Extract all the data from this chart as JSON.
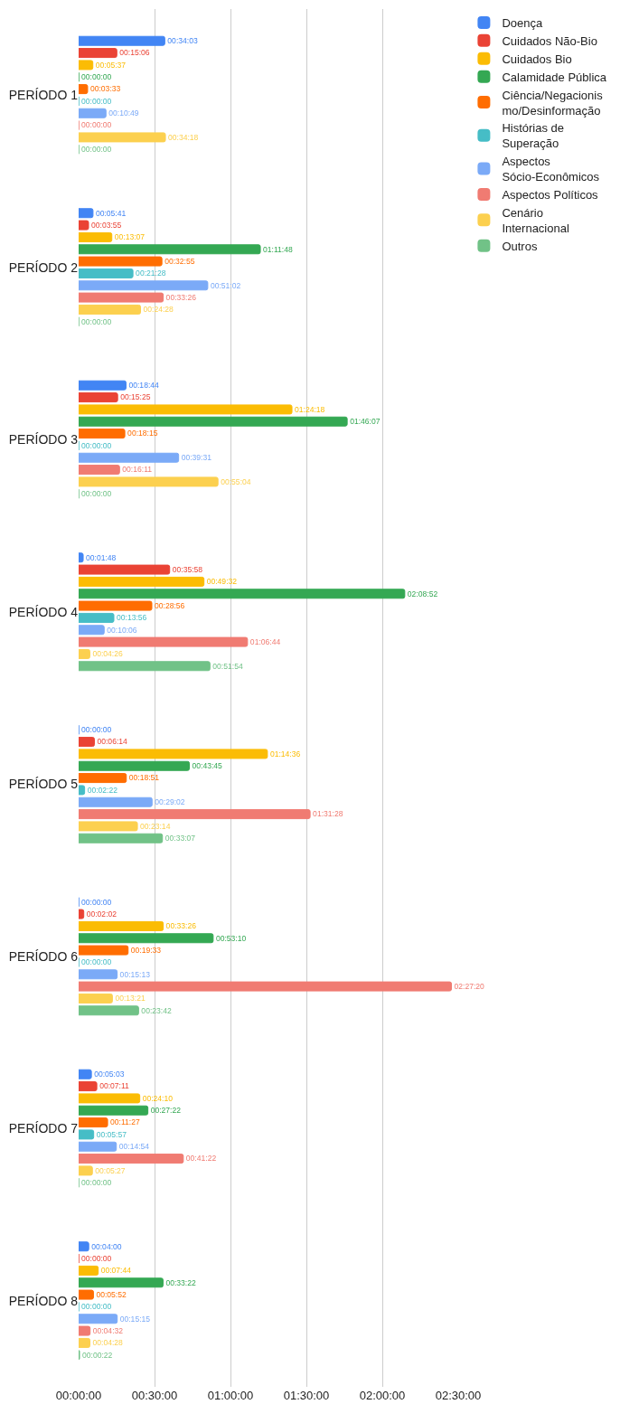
{
  "chart_data": {
    "type": "bar",
    "orientation": "horizontal",
    "categories": [
      "PERÍODO 1",
      "PERÍODO 2",
      "PERÍODO 3",
      "PERÍODO 4",
      "PERÍODO 5",
      "PERÍODO 6",
      "PERÍODO 7",
      "PERÍODO 8"
    ],
    "xlim": [
      0,
      9000
    ],
    "xticks": [
      {
        "value": 0,
        "label": "00:00:00"
      },
      {
        "value": 1800,
        "label": "00:30:00"
      },
      {
        "value": 3600,
        "label": "01:00:00"
      },
      {
        "value": 5400,
        "label": "01:30:00"
      },
      {
        "value": 7200,
        "label": "02:00:00"
      },
      {
        "value": 9000,
        "label": "02:30:00"
      }
    ],
    "grid": "x",
    "legend": "top right",
    "series": [
      {
        "name": "Doença",
        "color": "#4285f4",
        "values": [
          2043,
          341,
          1124,
          108,
          0,
          0,
          303,
          240
        ],
        "value_labels": [
          "00:34:03",
          "00:05:41",
          "00:18:44",
          "00:01:48",
          "00:00:00",
          "00:00:00",
          "00:05:03",
          "00:04:00"
        ]
      },
      {
        "name": "Cuidados Não-Bio",
        "color": "#ea4335",
        "values": [
          906,
          235,
          925,
          2158,
          374,
          122,
          431,
          0
        ],
        "value_labels": [
          "00:15:06",
          "00:03:55",
          "00:15:25",
          "00:35:58",
          "00:06:14",
          "00:02:02",
          "00:07:11",
          "00:00:00"
        ]
      },
      {
        "name": "Cuidados Bio",
        "color": "#fbbc04",
        "values": [
          337,
          787,
          5058,
          2972,
          4476,
          2006,
          1450,
          464
        ],
        "value_labels": [
          "00:05:37",
          "00:13:07",
          "01:24:18",
          "00:49:32",
          "01:14:36",
          "00:33:26",
          "00:24:10",
          "00:07:44"
        ]
      },
      {
        "name": "Calamidade Pública",
        "color": "#34a853",
        "values": [
          0,
          4308,
          6367,
          7732,
          2625,
          3190,
          1642,
          2002
        ],
        "value_labels": [
          "00:00:00",
          "01:11:48",
          "01:46:07",
          "02:08:52",
          "00:43:45",
          "00:53:10",
          "00:27:22",
          "00:33:22"
        ]
      },
      {
        "name": "Ciência/Negacionismo/Desinformação",
        "color": "#ff6d01",
        "values": [
          213,
          1975,
          1095,
          1736,
          1131,
          1173,
          687,
          352
        ],
        "value_labels": [
          "00:03:33",
          "00:32:55",
          "00:18:15",
          "00:28:56",
          "00:18:51",
          "00:19:33",
          "00:11:27",
          "00:05:52"
        ]
      },
      {
        "name": "Histórias de Superação",
        "color": "#46bdc6",
        "values": [
          0,
          1288,
          0,
          836,
          142,
          0,
          357,
          0
        ],
        "value_labels": [
          "00:00:00",
          "00:21:28",
          "00:00:00",
          "00:13:56",
          "00:02:22",
          "00:00:00",
          "00:05:57",
          "00:00:00"
        ]
      },
      {
        "name": "Aspectos Sócio-Econômicos",
        "color": "#7baaf7",
        "values": [
          649,
          3062,
          2371,
          606,
          1742,
          913,
          894,
          915
        ],
        "value_labels": [
          "00:10:49",
          "00:51:02",
          "00:39:31",
          "00:10:06",
          "00:29:02",
          "00:15:13",
          "00:14:54",
          "00:15:15"
        ]
      },
      {
        "name": "Aspectos Políticos",
        "color": "#f07b72",
        "values": [
          0,
          2006,
          971,
          4004,
          5488,
          8840,
          2482,
          272
        ],
        "value_labels": [
          "00:00:00",
          "00:33:26",
          "00:16:11",
          "01:06:44",
          "01:31:28",
          "02:27:20",
          "00:41:22",
          "00:04:32"
        ]
      },
      {
        "name": "Cenário Internacional",
        "color": "#fcd04f",
        "values": [
          2058,
          1468,
          3304,
          266,
          1394,
          801,
          327,
          268
        ],
        "value_labels": [
          "00:34:18",
          "00:24:28",
          "00:55:04",
          "00:04:26",
          "00:23:14",
          "00:13:21",
          "00:05:27",
          "00:04:28"
        ]
      },
      {
        "name": "Outros",
        "color": "#71c287",
        "values": [
          0,
          0,
          0,
          3114,
          1987,
          1422,
          0,
          22
        ],
        "value_labels": [
          "00:00:00",
          "00:00:00",
          "00:00:00",
          "00:51:54",
          "00:33:07",
          "00:23:42",
          "00:00:00",
          "00:00:22"
        ]
      }
    ]
  }
}
